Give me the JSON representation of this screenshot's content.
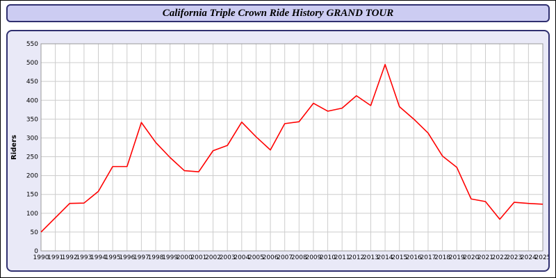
{
  "header": {
    "title": "California Triple Crown Ride History GRAND TOUR"
  },
  "colors": {
    "header_bg": "#ccccf2",
    "panel_bg": "#e9e9f7",
    "frame_border": "#2f2f6f",
    "line_color": "#ff0000",
    "grid_color": "#cccccc",
    "plot_bg": "#ffffff",
    "tick_text": "#000000"
  },
  "chart_data": {
    "type": "line",
    "title": "California Triple Crown Ride History GRAND TOUR",
    "xlabel": "",
    "ylabel": "Riders",
    "ylim": [
      0,
      550
    ],
    "ytick_step": 50,
    "grid": true,
    "legend": "none",
    "categories": [
      "1990",
      "1991",
      "1992",
      "1993",
      "1994",
      "1995",
      "1996",
      "1997",
      "1998",
      "1999",
      "2000",
      "2001",
      "2002",
      "2003",
      "2004",
      "2005",
      "2006",
      "2007",
      "2008",
      "2009",
      "2010",
      "2011",
      "2012",
      "2013",
      "2014",
      "2015",
      "2016",
      "2017",
      "2018",
      "2019",
      "2020",
      "2021",
      "2022",
      "2023",
      "2024",
      "2025"
    ],
    "series": [
      {
        "name": "Riders",
        "values": [
          50,
          88,
          126,
          127,
          158,
          224,
          224,
          341,
          288,
          248,
          213,
          210,
          266,
          280,
          342,
          303,
          268,
          338,
          343,
          392,
          371,
          379,
          412,
          386,
          495,
          383,
          350,
          313,
          252,
          222,
          138,
          131,
          84,
          129,
          126,
          124
        ]
      }
    ]
  }
}
